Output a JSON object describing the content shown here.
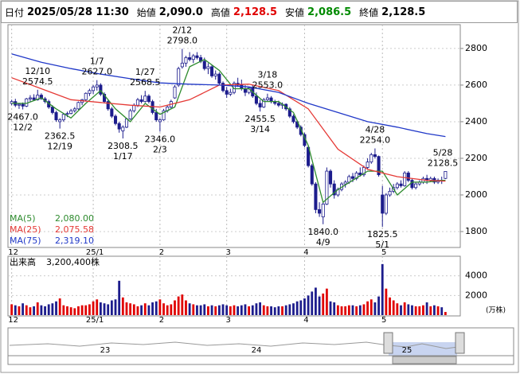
{
  "header": {
    "fields": [
      {
        "label": "日付",
        "value": "2025/05/28 11:30",
        "color": "#000000"
      },
      {
        "label": "始値",
        "value": "2,090.0",
        "color": "#000000"
      },
      {
        "label": "高値",
        "value": "2,128.5",
        "color": "#e00000"
      },
      {
        "label": "安値",
        "value": "2,086.5",
        "color": "#008a00"
      },
      {
        "label": "終値",
        "value": "2,128.5",
        "color": "#000000"
      }
    ]
  },
  "chart_data": [
    {
      "type": "candlestick",
      "xlim": [
        -1,
        121
      ],
      "xticks": [
        {
          "value": 0,
          "label": "12"
        },
        {
          "value": 22,
          "label": "25/1"
        },
        {
          "value": 40,
          "label": "2"
        },
        {
          "value": 58,
          "label": "3"
        },
        {
          "value": 79,
          "label": "4"
        },
        {
          "value": 100,
          "label": "5"
        }
      ],
      "ylim": [
        1713,
        2930
      ],
      "yticks": [
        1800,
        2000,
        2200,
        2400,
        2600,
        2800
      ],
      "grid": true,
      "up_color": "#ffffff",
      "down_color": "#1c1c8c",
      "edge_color": "#1c1c8c",
      "open": [
        2500,
        2510,
        2490,
        2495,
        2485,
        2525,
        2530,
        2520,
        2545,
        2525,
        2510,
        2480,
        2450,
        2400,
        2410,
        2440,
        2445,
        2460,
        2470,
        2505,
        2520,
        2555,
        2570,
        2590,
        2600,
        2550,
        2510,
        2470,
        2430,
        2390,
        2350,
        2370,
        2415,
        2460,
        2490,
        2520,
        2510,
        2540,
        2510,
        2450,
        2400,
        2410,
        2460,
        2480,
        2530,
        2600,
        2700,
        2720,
        2750,
        2740,
        2760,
        2750,
        2730,
        2690,
        2700,
        2650,
        2660,
        2610,
        2570,
        2550,
        2560,
        2610,
        2600,
        2580,
        2560,
        2585,
        2540,
        2500,
        2480,
        2520,
        2530,
        2510,
        2500,
        2490,
        2495,
        2470,
        2430,
        2400,
        2370,
        2330,
        2260,
        2160,
        2060,
        1920,
        1880,
        1950,
        2130,
        2060,
        2000,
        2030,
        2060,
        2070,
        2100,
        2090,
        2120,
        2110,
        2150,
        2180,
        2220,
        2210,
        2000,
        1900,
        2000,
        2020,
        2040,
        2060,
        2050,
        2120,
        2080,
        2040,
        2060,
        2070,
        2090,
        2080,
        2090,
        2070,
        2080,
        2090
      ],
      "high": [
        2520,
        2525,
        2500,
        2505,
        2530,
        2545,
        2550,
        2574.5,
        2555,
        2535,
        2520,
        2490,
        2460,
        2420,
        2445,
        2455,
        2470,
        2480,
        2510,
        2525,
        2560,
        2580,
        2600,
        2627,
        2610,
        2560,
        2520,
        2480,
        2440,
        2400,
        2380,
        2420,
        2470,
        2500,
        2530,
        2545,
        2568.5,
        2550,
        2520,
        2470,
        2420,
        2470,
        2490,
        2520,
        2600,
        2700,
        2798,
        2760,
        2780,
        2770,
        2780,
        2765,
        2750,
        2720,
        2710,
        2680,
        2670,
        2620,
        2590,
        2580,
        2620,
        2640,
        2630,
        2600,
        2590,
        2600,
        2560,
        2520,
        2530,
        2553,
        2540,
        2520,
        2515,
        2505,
        2500,
        2480,
        2440,
        2410,
        2380,
        2340,
        2270,
        2170,
        2070,
        1960,
        1960,
        2150,
        2140,
        2080,
        2040,
        2070,
        2080,
        2110,
        2120,
        2130,
        2150,
        2160,
        2200,
        2230,
        2254,
        2215,
        2050,
        2010,
        2040,
        2060,
        2070,
        2080,
        2130,
        2130,
        2090,
        2070,
        2080,
        2100,
        2110,
        2100,
        2100,
        2090,
        2100,
        2128.5
      ],
      "low": [
        2490,
        2480,
        2470,
        2467,
        2480,
        2510,
        2515,
        2515,
        2520,
        2500,
        2470,
        2440,
        2400,
        2362.5,
        2400,
        2425,
        2440,
        2450,
        2465,
        2490,
        2515,
        2540,
        2550,
        2570,
        2540,
        2500,
        2460,
        2420,
        2380,
        2340,
        2308.5,
        2365,
        2410,
        2450,
        2480,
        2500,
        2505,
        2500,
        2440,
        2400,
        2346,
        2405,
        2450,
        2470,
        2525,
        2590,
        2690,
        2700,
        2730,
        2720,
        2740,
        2720,
        2680,
        2660,
        2640,
        2630,
        2600,
        2560,
        2530,
        2540,
        2550,
        2590,
        2570,
        2540,
        2550,
        2530,
        2490,
        2455.5,
        2475,
        2510,
        2500,
        2490,
        2480,
        2470,
        2460,
        2420,
        2390,
        2360,
        2320,
        2260,
        2150,
        2050,
        1900,
        1880,
        1840,
        1945,
        2040,
        1980,
        1990,
        2020,
        2040,
        2060,
        2070,
        2080,
        2100,
        2100,
        2140,
        2170,
        2200,
        2100,
        1825.5,
        1890,
        1990,
        2010,
        2030,
        2040,
        2045,
        2070,
        2030,
        2030,
        2050,
        2060,
        2060,
        2070,
        2060,
        2060,
        2060,
        2086.5
      ],
      "close": [
        2510,
        2490,
        2495,
        2485,
        2525,
        2530,
        2520,
        2545,
        2525,
        2510,
        2480,
        2450,
        2410,
        2410,
        2440,
        2445,
        2460,
        2470,
        2505,
        2520,
        2555,
        2570,
        2590,
        2600,
        2550,
        2510,
        2470,
        2430,
        2390,
        2360,
        2370,
        2415,
        2460,
        2490,
        2520,
        2510,
        2540,
        2510,
        2450,
        2410,
        2410,
        2460,
        2480,
        2510,
        2590,
        2690,
        2720,
        2750,
        2740,
        2760,
        2750,
        2730,
        2690,
        2700,
        2650,
        2660,
        2610,
        2570,
        2550,
        2560,
        2610,
        2600,
        2580,
        2560,
        2585,
        2540,
        2500,
        2480,
        2520,
        2530,
        2510,
        2500,
        2490,
        2495,
        2470,
        2430,
        2400,
        2370,
        2330,
        2270,
        2160,
        2060,
        1920,
        1900,
        1950,
        2130,
        2060,
        2000,
        2030,
        2060,
        2070,
        2100,
        2090,
        2120,
        2110,
        2150,
        2180,
        2220,
        2210,
        2110,
        1900,
        2000,
        2020,
        2040,
        2060,
        2050,
        2120,
        2080,
        2040,
        2060,
        2070,
        2090,
        2080,
        2090,
        2070,
        2080,
        2075,
        2128.5
      ],
      "ma": [
        {
          "name": "MA(5)",
          "color": "#2e8b2e",
          "legend_value": "2,080.00",
          "x": [
            0,
            4,
            8,
            12,
            16,
            20,
            24,
            28,
            32,
            36,
            40,
            44,
            48,
            52,
            56,
            60,
            64,
            68,
            72,
            76,
            80,
            84,
            88,
            92,
            96,
            100,
            104,
            108,
            112,
            116,
            117
          ],
          "values": [
            2500,
            2500,
            2530,
            2470,
            2420,
            2500,
            2570,
            2470,
            2400,
            2500,
            2440,
            2480,
            2700,
            2740,
            2680,
            2580,
            2580,
            2510,
            2510,
            2450,
            2270,
            1960,
            2030,
            2080,
            2130,
            2130,
            2000,
            2070,
            2070,
            2080,
            2080
          ]
        },
        {
          "name": "MA(25)",
          "color": "#e53935",
          "legend_value": "2,075.58",
          "x": [
            0,
            8,
            16,
            24,
            32,
            40,
            48,
            56,
            64,
            72,
            80,
            88,
            96,
            104,
            112,
            117
          ],
          "values": [
            2640,
            2580,
            2520,
            2505,
            2490,
            2480,
            2520,
            2600,
            2605,
            2570,
            2470,
            2250,
            2140,
            2100,
            2080,
            2075.58
          ]
        },
        {
          "name": "MA(75)",
          "color": "#2038c8",
          "legend_value": "2,319.10",
          "x": [
            0,
            8,
            16,
            24,
            32,
            40,
            48,
            56,
            64,
            72,
            80,
            88,
            96,
            104,
            112,
            117
          ],
          "values": [
            2770,
            2725,
            2690,
            2660,
            2635,
            2612,
            2605,
            2600,
            2590,
            2560,
            2500,
            2450,
            2400,
            2370,
            2335,
            2319.1
          ]
        }
      ],
      "annotations": [
        {
          "x": 3,
          "value": 2467,
          "value_label": "2467.0",
          "date": "12/2",
          "position": "below"
        },
        {
          "x": 7,
          "value": 2574.5,
          "value_label": "2574.5",
          "date": "12/10",
          "position": "above"
        },
        {
          "x": 13,
          "value": 2362.5,
          "value_label": "2362.5",
          "date": "12/19",
          "position": "below"
        },
        {
          "x": 23,
          "value": 2627,
          "value_label": "2627.0",
          "date": "1/7",
          "position": "above"
        },
        {
          "x": 30,
          "value": 2308.5,
          "value_label": "2308.5",
          "date": "1/17",
          "position": "below"
        },
        {
          "x": 36,
          "value": 2568.5,
          "value_label": "2568.5",
          "date": "1/27",
          "position": "above"
        },
        {
          "x": 40,
          "value": 2346,
          "value_label": "2346.0",
          "date": "2/3",
          "position": "below"
        },
        {
          "x": 46,
          "value": 2798,
          "value_label": "2798.0",
          "date": "2/12",
          "position": "above"
        },
        {
          "x": 67,
          "value": 2455.5,
          "value_label": "2455.5",
          "date": "3/14",
          "position": "below"
        },
        {
          "x": 69,
          "value": 2553,
          "value_label": "2553.0",
          "date": "3/18",
          "position": "above"
        },
        {
          "x": 84,
          "value": 1840,
          "value_label": "1840.0",
          "date": "4/9",
          "position": "below"
        },
        {
          "x": 98,
          "value": 2254,
          "value_label": "2254.0",
          "date": "4/28",
          "position": "above"
        },
        {
          "x": 100,
          "value": 1825.5,
          "value_label": "1825.5",
          "date": "5/1",
          "position": "below"
        },
        {
          "x": 117,
          "value": 2128.5,
          "value_label": "2128.5",
          "date": "5/28",
          "position": "above"
        }
      ]
    },
    {
      "type": "bar",
      "title": "出来高",
      "subtitle": "3,200,400株",
      "unit": "(万株)",
      "up_color": "#e00000",
      "down_color": "#1c1c8c",
      "ylim": [
        0,
        6000
      ],
      "yticks": [
        2000,
        4000
      ],
      "values": [
        1100,
        1000,
        900,
        1200,
        1000,
        800,
        900,
        1300,
        1000,
        900,
        1100,
        1200,
        1400,
        1700,
        1000,
        900,
        800,
        700,
        900,
        1000,
        1000,
        1100,
        1400,
        1600,
        1300,
        1200,
        1100,
        1500,
        1600,
        3500,
        1800,
        1300,
        1200,
        1100,
        900,
        1000,
        1200,
        1000,
        1300,
        1400,
        1600,
        1200,
        1000,
        1100,
        1500,
        1900,
        2100,
        1500,
        1200,
        1100,
        1000,
        1000,
        1100,
        900,
        1000,
        900,
        1000,
        1100,
        1000,
        900,
        1000,
        900,
        1000,
        1100,
        900,
        1000,
        1200,
        1300,
        1000,
        900,
        900,
        800,
        900,
        900,
        1000,
        1100,
        1200,
        1400,
        1500,
        1700,
        2000,
        2400,
        2800,
        1900,
        2200,
        2700,
        1400,
        1300,
        1000,
        900,
        900,
        1000,
        1000,
        900,
        1000,
        1100,
        1400,
        1600,
        1300,
        1900,
        5200,
        2700,
        1800,
        1500,
        1200,
        1000,
        1300,
        1100,
        1000,
        900,
        900,
        1000,
        1300,
        900,
        1000,
        900,
        800,
        320
      ]
    }
  ],
  "navigator": {
    "labels": [
      "23",
      "24",
      "25"
    ]
  }
}
